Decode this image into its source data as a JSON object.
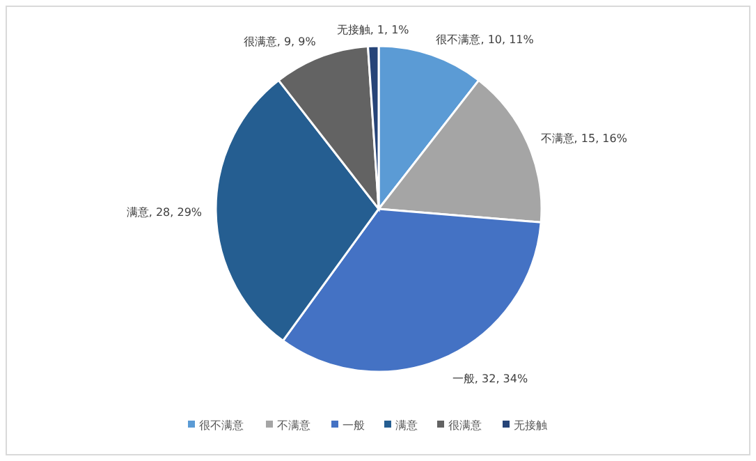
{
  "chart_data": {
    "type": "pie",
    "categories": [
      "很不满意",
      "不满意",
      "一般",
      "满意",
      "很满意",
      "无接触"
    ],
    "values": [
      10,
      15,
      32,
      28,
      9,
      1
    ],
    "value_labels": [
      "很不满意, 10, 11%",
      "不满意, 15, 16%",
      "一般, 32, 34%",
      "满意, 28, 29%",
      "很满意, 9, 9%",
      "无接触, 1, 1%"
    ],
    "colors": [
      "#5b9bd5",
      "#a5a5a5",
      "#4472c4",
      "#255e91",
      "#636363",
      "#264478"
    ],
    "legend": "bottom"
  }
}
